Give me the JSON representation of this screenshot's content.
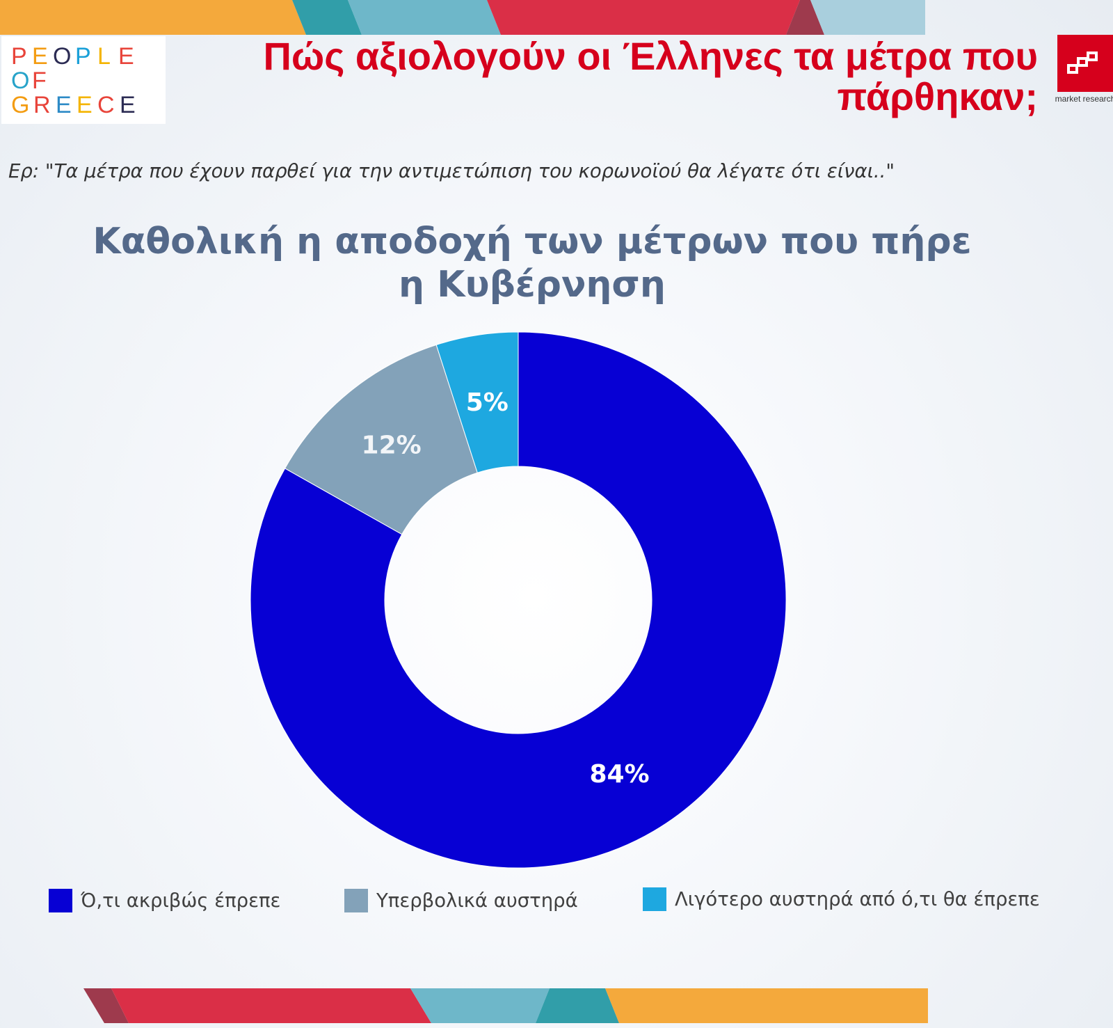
{
  "header": {
    "title": "Πώς αξιολογούν οι Έλληνες τα μέτρα που πάρθηκαν;",
    "logo_left": "PEOPLE OF GREECE",
    "logo_right_caption": "market research",
    "question": "Ερ: \"Τα μέτρα που έχουν παρθεί για την αντιμετώπιση του κορωνοϊού θα λέγατε ότι είναι..\""
  },
  "colors": {
    "title_red": "#d6001c",
    "chart_title": "#54698a",
    "slice_exact": "#0700d4",
    "slice_strict": "#83a2b9",
    "slice_less": "#1ea8e0",
    "band_orange": "#f4a93c",
    "band_teal": "#319ea9",
    "band_lightblue": "#6eb7c9",
    "band_red": "#da2f47",
    "band_darkred": "#9e3a4d",
    "band_paleblue": "#a9cfdd"
  },
  "chart_data": {
    "type": "pie",
    "title": "Καθολική η αποδοχή των μέτρων που πήρε η Κυβέρνηση",
    "donut": true,
    "legend_position": "bottom",
    "categories": [
      "Ό,τι ακριβώς έπρεπε",
      "Υπερβολικά αυστηρά",
      "Λιγότερο αυστηρά από ό,τι θα έπρεπε"
    ],
    "values": [
      84,
      12,
      5
    ],
    "data_labels": [
      "84%",
      "12%",
      "5%"
    ]
  }
}
